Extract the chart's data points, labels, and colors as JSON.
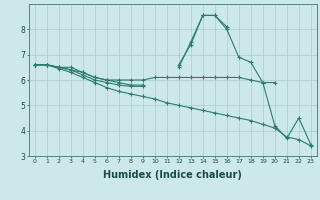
{
  "x": [
    0,
    1,
    2,
    3,
    4,
    5,
    6,
    7,
    8,
    9,
    10,
    11,
    12,
    13,
    14,
    15,
    16,
    17,
    18,
    19,
    20,
    21,
    22,
    23
  ],
  "line1": [
    6.6,
    6.6,
    6.5,
    6.5,
    6.3,
    6.1,
    6.0,
    6.0,
    6.0,
    6.0,
    6.1,
    6.1,
    6.1,
    6.1,
    6.1,
    6.1,
    6.1,
    6.1,
    6.0,
    5.9,
    5.9,
    null,
    null,
    null
  ],
  "line2": [
    6.6,
    6.6,
    6.5,
    6.4,
    6.3,
    6.1,
    6.0,
    5.9,
    5.8,
    5.8,
    null,
    null,
    6.5,
    7.5,
    8.55,
    8.55,
    8.1,
    null,
    null,
    null,
    null,
    null,
    null,
    null
  ],
  "line3": [
    6.6,
    6.6,
    6.5,
    6.4,
    6.2,
    6.0,
    5.9,
    5.8,
    5.75,
    5.75,
    null,
    null,
    6.6,
    7.4,
    8.55,
    8.55,
    8.0,
    6.9,
    6.7,
    5.9,
    4.2,
    3.7,
    4.5,
    3.45
  ],
  "line4": [
    6.6,
    6.6,
    6.45,
    6.3,
    6.1,
    5.9,
    5.7,
    5.55,
    5.45,
    5.35,
    5.25,
    5.1,
    5.0,
    4.9,
    4.8,
    4.7,
    4.6,
    4.5,
    4.4,
    4.25,
    4.1,
    3.75,
    3.65,
    3.4
  ],
  "color": "#2a7d6b",
  "bg_color": "#cce8e8",
  "grid_color": "#aacccc",
  "xlabel": "Humidex (Indice chaleur)",
  "xlabel_fontsize": 7,
  "ylim": [
    3,
    9
  ],
  "xlim": [
    -0.5,
    23.5
  ],
  "yticks": [
    3,
    4,
    5,
    6,
    7,
    8
  ],
  "xticks": [
    0,
    1,
    2,
    3,
    4,
    5,
    6,
    7,
    8,
    9,
    10,
    11,
    12,
    13,
    14,
    15,
    16,
    17,
    18,
    19,
    20,
    21,
    22,
    23
  ]
}
